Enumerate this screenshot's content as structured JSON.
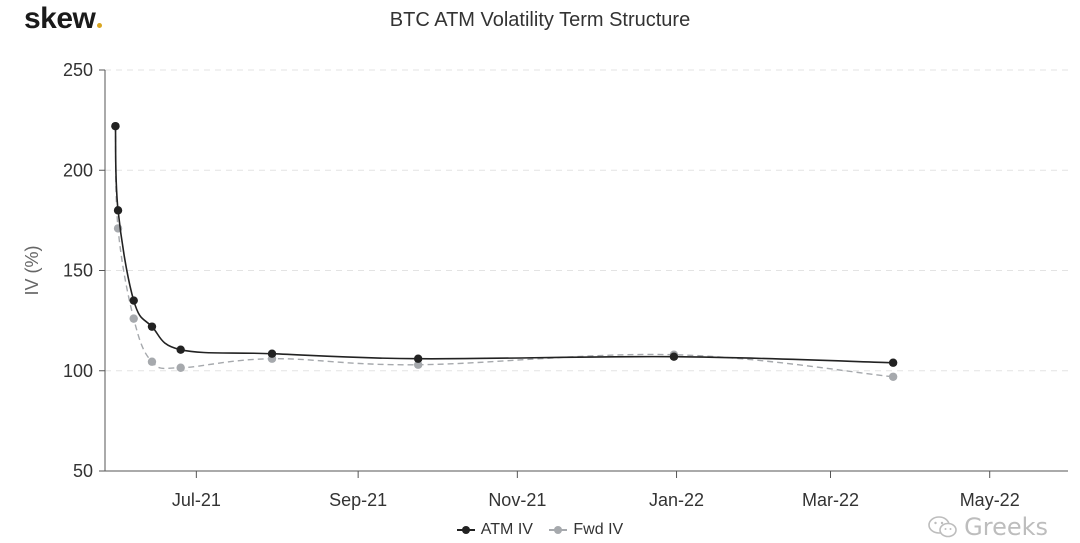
{
  "logo": {
    "text": "skew",
    "dot_color": "#d9a520"
  },
  "watermark": {
    "icon": "wechat-icon",
    "text": "Greeks"
  },
  "chart_data": {
    "type": "line",
    "title": "BTC ATM Volatility Term Structure",
    "xlabel": "",
    "ylabel": "IV (%)",
    "ylim": [
      50,
      250
    ],
    "yticks": [
      50,
      100,
      150,
      200,
      250
    ],
    "xlim": [
      "2021-05-27",
      "2022-05-31"
    ],
    "xticks": [
      {
        "date": "2021-07-01",
        "label": "Jul-21"
      },
      {
        "date": "2021-09-01",
        "label": "Sep-21"
      },
      {
        "date": "2021-11-01",
        "label": "Nov-21"
      },
      {
        "date": "2022-01-01",
        "label": "Jan-22"
      },
      {
        "date": "2022-03-01",
        "label": "Mar-22"
      },
      {
        "date": "2022-05-01",
        "label": "May-22"
      }
    ],
    "grid": true,
    "legend_position": "bottom",
    "series": [
      {
        "name": "ATM IV",
        "color": "#222222",
        "dash": "solid",
        "points": [
          {
            "x": "2021-05-31",
            "y": 222
          },
          {
            "x": "2021-06-01",
            "y": 180
          },
          {
            "x": "2021-06-07",
            "y": 135
          },
          {
            "x": "2021-06-14",
            "y": 122
          },
          {
            "x": "2021-06-25",
            "y": 110.5
          },
          {
            "x": "2021-07-30",
            "y": 108.5
          },
          {
            "x": "2021-09-24",
            "y": 106
          },
          {
            "x": "2021-12-31",
            "y": 107
          },
          {
            "x": "2022-03-25",
            "y": 104
          }
        ]
      },
      {
        "name": "Fwd IV",
        "color": "#a6a9ad",
        "dash": "dashed",
        "points": [
          {
            "x": "2021-05-31",
            "y": 222
          },
          {
            "x": "2021-06-01",
            "y": 171
          },
          {
            "x": "2021-06-07",
            "y": 126
          },
          {
            "x": "2021-06-14",
            "y": 104.5
          },
          {
            "x": "2021-06-25",
            "y": 101.5
          },
          {
            "x": "2021-07-30",
            "y": 106
          },
          {
            "x": "2021-09-24",
            "y": 103
          },
          {
            "x": "2021-12-31",
            "y": 108
          },
          {
            "x": "2022-03-25",
            "y": 97
          }
        ]
      }
    ]
  }
}
